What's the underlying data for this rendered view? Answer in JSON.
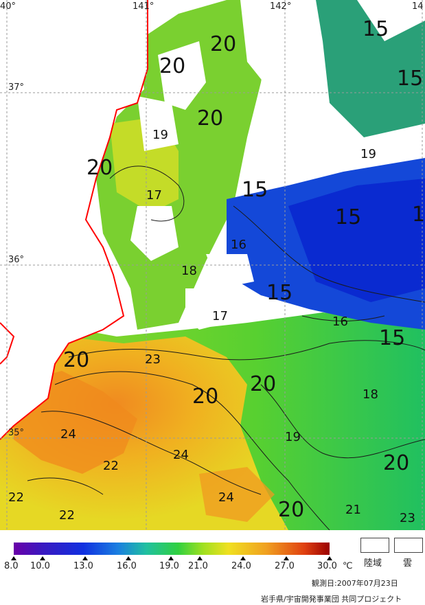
{
  "map": {
    "lat_labels": [
      "37°",
      "36°",
      "35°"
    ],
    "lon_labels": [
      "40°",
      "141°",
      "142°",
      "14"
    ],
    "isotherm_labels": [
      "20",
      "20",
      "20",
      "20",
      "19",
      "17",
      "15",
      "15",
      "15",
      "15",
      "1",
      "16",
      "18",
      "15",
      "17",
      "16",
      "15",
      "23",
      "20",
      "20",
      "20",
      "18",
      "19",
      "24",
      "22",
      "24",
      "22",
      "22",
      "24",
      "20",
      "21",
      "20",
      "23",
      "19"
    ],
    "colors": {
      "land": "#ffffff",
      "cloud": "#ffffff",
      "coastline": "#ff0000",
      "grid": "#9a9a9a"
    }
  },
  "scale": {
    "ticks": [
      "8.0",
      "10.0",
      "13.0",
      "16.0",
      "19.0",
      "21.0",
      "24.0",
      "27.0",
      "30.0"
    ],
    "unit": "℃",
    "min": 8.0,
    "max": 30.0,
    "colors": [
      "#6a00a8",
      "#1030e0",
      "#1a7fe0",
      "#20c0a0",
      "#30d040",
      "#a0e020",
      "#f0e020",
      "#f0a020",
      "#e04010",
      "#9a0000"
    ]
  },
  "legend": {
    "land": "陸域",
    "cloud": "雲"
  },
  "footer": {
    "observation_date": "観測日:2007年07月23日",
    "credit": "岩手県/宇宙開発事業団 共同プロジェクト"
  }
}
